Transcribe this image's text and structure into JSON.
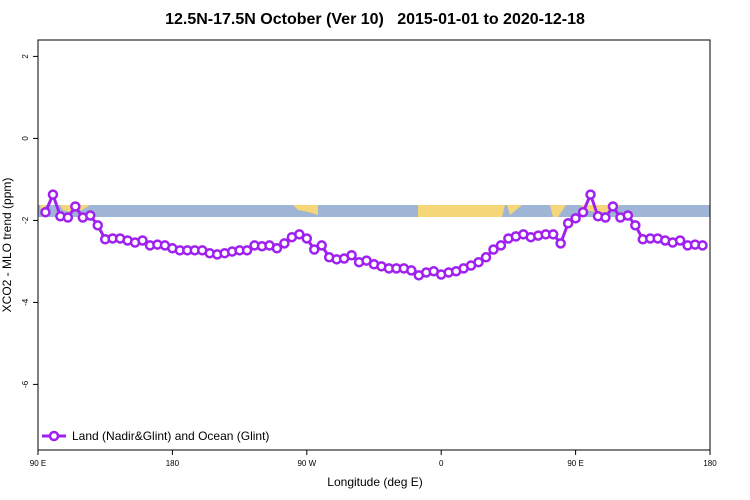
{
  "chart_data": {
    "type": "line",
    "title": "12.5N-17.5N October (Ver 10)   2015-01-01 to 2020-12-18",
    "x_label": "Longitude (deg E)",
    "y_label": "XCO2 - MLO trend (ppm)",
    "xlim": [
      90,
      540
    ],
    "xticks": [
      {
        "value": 90,
        "label": "90 E"
      },
      180,
      {
        "value": 270,
        "label": "90 W"
      },
      {
        "value": 360,
        "label": "0"
      },
      {
        "value": 450,
        "label": "90 E"
      },
      {
        "value": 540,
        "label": "180"
      }
    ],
    "ylim": [
      -7.6,
      2.4
    ],
    "yticks": [
      2,
      0,
      -2,
      -4,
      -6
    ],
    "legend": "bottom left",
    "x": [
      95,
      100,
      105,
      110,
      115,
      120,
      125,
      130,
      135,
      140,
      145,
      150,
      155,
      160,
      165,
      170,
      175,
      180,
      185,
      190,
      195,
      200,
      205,
      210,
      215,
      220,
      225,
      230,
      235,
      240,
      245,
      250,
      255,
      260,
      265,
      270,
      275,
      280,
      285,
      290,
      295,
      300,
      305,
      310,
      315,
      320,
      325,
      330,
      335,
      340,
      345,
      350,
      355,
      360,
      365,
      370,
      375,
      380,
      385,
      390,
      395,
      400,
      405,
      410,
      415,
      420,
      425,
      430,
      435,
      440,
      445,
      450,
      455,
      460,
      465,
      470,
      475,
      480,
      485,
      490,
      495,
      500,
      505,
      510,
      515,
      520,
      525,
      530,
      535
    ],
    "series": [
      {
        "name": "Land (Nadir&Glint) and Ocean (Glint)",
        "color": "#a020f0",
        "values": [
          -1.8,
          -1.37,
          -1.9,
          -1.93,
          -1.66,
          -1.93,
          -1.88,
          -2.12,
          -2.46,
          -2.44,
          -2.44,
          -2.49,
          -2.54,
          -2.49,
          -2.61,
          -2.59,
          -2.61,
          -2.68,
          -2.73,
          -2.73,
          -2.73,
          -2.73,
          -2.8,
          -2.83,
          -2.8,
          -2.76,
          -2.73,
          -2.73,
          -2.61,
          -2.63,
          -2.61,
          -2.68,
          -2.56,
          -2.41,
          -2.34,
          -2.44,
          -2.71,
          -2.61,
          -2.9,
          -2.95,
          -2.93,
          -2.85,
          -3.02,
          -2.98,
          -3.07,
          -3.12,
          -3.17,
          -3.17,
          -3.17,
          -3.22,
          -3.34,
          -3.27,
          -3.24,
          -3.32,
          -3.27,
          -3.24,
          -3.17,
          -3.1,
          -3.02,
          -2.9,
          -2.71,
          -2.61,
          -2.44,
          -2.39,
          -2.34,
          -2.41,
          -2.37,
          -2.34,
          -2.34,
          -2.56,
          -2.07,
          -1.95,
          -1.8,
          -1.37,
          -1.9,
          -1.93,
          -1.66,
          -1.93,
          -1.88,
          -2.12,
          -2.46,
          -2.44,
          -2.44,
          -2.49,
          -2.54,
          -2.49,
          -2.61,
          -2.59,
          -2.61
        ]
      }
    ]
  }
}
